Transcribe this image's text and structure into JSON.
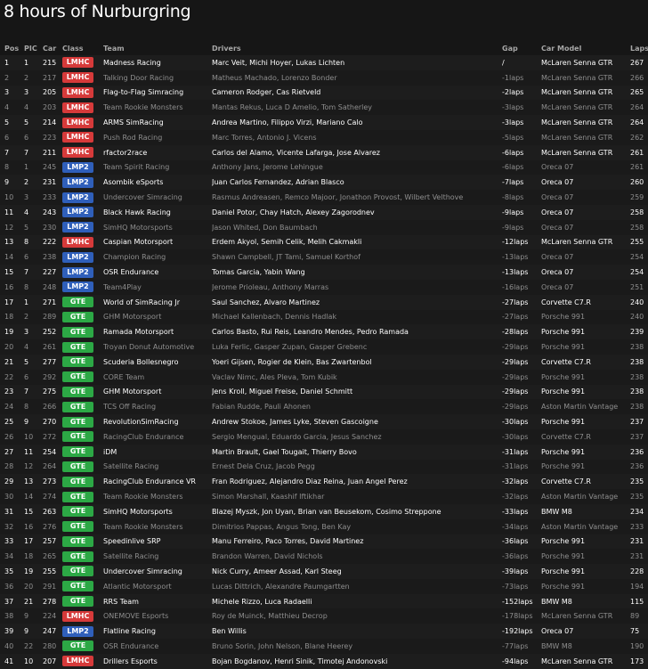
{
  "title": "8 hours of Nurburgring",
  "headers": {
    "pos": "Pos",
    "pic": "PIC",
    "car": "Car",
    "class": "Class",
    "team": "Team",
    "drivers": "Drivers",
    "gap": "Gap",
    "model": "Car Model",
    "laps": "Laps"
  },
  "class_colors": {
    "LMHC": "#d63a3a",
    "LMP2": "#2f5fba",
    "GTE": "#2ca845"
  },
  "rows": [
    {
      "pos": "1",
      "pic": "1",
      "car": "215",
      "class": "LMHC",
      "team": "Madness Racing",
      "drivers": "Marc Veit, Michi Hoyer, Lukas Lichten",
      "gap": "/",
      "model": "McLaren Senna GTR",
      "laps": "267",
      "dim": false
    },
    {
      "pos": "2",
      "pic": "2",
      "car": "217",
      "class": "LMHC",
      "team": "Talking Door Racing",
      "drivers": "Matheus Machado, Lorenzo Bonder",
      "gap": "-1laps",
      "model": "McLaren Senna GTR",
      "laps": "266",
      "dim": true
    },
    {
      "pos": "3",
      "pic": "3",
      "car": "205",
      "class": "LMHC",
      "team": "Flag-to-Flag Simracing",
      "drivers": "Cameron Rodger, Cas Rietveld",
      "gap": "-2laps",
      "model": "McLaren Senna GTR",
      "laps": "265",
      "dim": false
    },
    {
      "pos": "4",
      "pic": "4",
      "car": "203",
      "class": "LMHC",
      "team": "Team Rookie Monsters",
      "drivers": "Mantas Rekus, Luca D Amelio, Tom Satherley",
      "gap": "-3laps",
      "model": "McLaren Senna GTR",
      "laps": "264",
      "dim": true
    },
    {
      "pos": "5",
      "pic": "5",
      "car": "214",
      "class": "LMHC",
      "team": "ARMS SimRacing",
      "drivers": "Andrea Martino, Filippo Virzi, Mariano Calo",
      "gap": "-3laps",
      "model": "McLaren Senna GTR",
      "laps": "264",
      "dim": false
    },
    {
      "pos": "6",
      "pic": "6",
      "car": "223",
      "class": "LMHC",
      "team": "Push Rod Racing",
      "drivers": "Marc Torres, Antonio J. Vicens",
      "gap": "-5laps",
      "model": "McLaren Senna GTR",
      "laps": "262",
      "dim": true
    },
    {
      "pos": "7",
      "pic": "7",
      "car": "211",
      "class": "LMHC",
      "team": "rfactor2race",
      "drivers": "Carlos del Alamo, Vicente Lafarga, Jose Alvarez",
      "gap": "-6laps",
      "model": "McLaren Senna GTR",
      "laps": "261",
      "dim": false
    },
    {
      "pos": "8",
      "pic": "1",
      "car": "245",
      "class": "LMP2",
      "team": "Team Spirit Racing",
      "drivers": "Anthony Jans, Jerome Lehingue",
      "gap": "-6laps",
      "model": "Oreca 07",
      "laps": "261",
      "dim": true
    },
    {
      "pos": "9",
      "pic": "2",
      "car": "231",
      "class": "LMP2",
      "team": "Asombik eSports",
      "drivers": "Juan Carlos Fernandez, Adrian Blasco",
      "gap": "-7laps",
      "model": "Oreca 07",
      "laps": "260",
      "dim": false
    },
    {
      "pos": "10",
      "pic": "3",
      "car": "233",
      "class": "LMP2",
      "team": "Undercover Simracing",
      "drivers": "Rasmus Andreasen, Remco Majoor, Jonathon Provost, Wilbert Velthove",
      "gap": "-8laps",
      "model": "Oreca 07",
      "laps": "259",
      "dim": true
    },
    {
      "pos": "11",
      "pic": "4",
      "car": "243",
      "class": "LMP2",
      "team": "Black Hawk Racing",
      "drivers": "Daniel Potor, Chay Hatch, Alexey Zagorodnev",
      "gap": "-9laps",
      "model": "Oreca 07",
      "laps": "258",
      "dim": false
    },
    {
      "pos": "12",
      "pic": "5",
      "car": "230",
      "class": "LMP2",
      "team": "SimHQ Motorsports",
      "drivers": "Jason Whited, Don Baumbach",
      "gap": "-9laps",
      "model": "Oreca 07",
      "laps": "258",
      "dim": true
    },
    {
      "pos": "13",
      "pic": "8",
      "car": "222",
      "class": "LMHC",
      "team": "Caspian Motorsport",
      "drivers": "Erdem Akyol, Semih Celik, Melih Cakmakli",
      "gap": "-12laps",
      "model": "McLaren Senna GTR",
      "laps": "255",
      "dim": false
    },
    {
      "pos": "14",
      "pic": "6",
      "car": "238",
      "class": "LMP2",
      "team": "Champion Racing",
      "drivers": "Shawn Campbell, JT Tami, Samuel Korthof",
      "gap": "-13laps",
      "model": "Oreca 07",
      "laps": "254",
      "dim": true
    },
    {
      "pos": "15",
      "pic": "7",
      "car": "227",
      "class": "LMP2",
      "team": "OSR Endurance",
      "drivers": "Tomas Garcia, Yabin Wang",
      "gap": "-13laps",
      "model": "Oreca 07",
      "laps": "254",
      "dim": false
    },
    {
      "pos": "16",
      "pic": "8",
      "car": "248",
      "class": "LMP2",
      "team": "Team4Play",
      "drivers": "Jerome Prioleau, Anthony Marras",
      "gap": "-16laps",
      "model": "Oreca 07",
      "laps": "251",
      "dim": true
    },
    {
      "pos": "17",
      "pic": "1",
      "car": "271",
      "class": "GTE",
      "team": "World of SimRacing Jr",
      "drivers": "Saul Sanchez, Alvaro Martinez",
      "gap": "-27laps",
      "model": "Corvette C7.R",
      "laps": "240",
      "dim": false
    },
    {
      "pos": "18",
      "pic": "2",
      "car": "289",
      "class": "GTE",
      "team": "GHM Motorsport",
      "drivers": "Michael Kallenbach, Dennis Hadlak",
      "gap": "-27laps",
      "model": "Porsche 991",
      "laps": "240",
      "dim": true
    },
    {
      "pos": "19",
      "pic": "3",
      "car": "252",
      "class": "GTE",
      "team": "Ramada Motorsport",
      "drivers": "Carlos Basto, Rui Reis, Leandro Mendes, Pedro Ramada",
      "gap": "-28laps",
      "model": "Porsche 991",
      "laps": "239",
      "dim": false
    },
    {
      "pos": "20",
      "pic": "4",
      "car": "261",
      "class": "GTE",
      "team": "Troyan Donut Automotive",
      "drivers": "Luka Ferlic, Gasper Zupan, Gasper Grebenc",
      "gap": "-29laps",
      "model": "Porsche 991",
      "laps": "238",
      "dim": true
    },
    {
      "pos": "21",
      "pic": "5",
      "car": "277",
      "class": "GTE",
      "team": "Scuderia Bollesnegro",
      "drivers": "Yoeri Gijsen, Rogier de Klein, Bas Zwartenbol",
      "gap": "-29laps",
      "model": "Corvette C7.R",
      "laps": "238",
      "dim": false
    },
    {
      "pos": "22",
      "pic": "6",
      "car": "292",
      "class": "GTE",
      "team": "CORE Team",
      "drivers": "Vaclav Nimc, Ales Pleva, Tom Kubik",
      "gap": "-29laps",
      "model": "Porsche 991",
      "laps": "238",
      "dim": true
    },
    {
      "pos": "23",
      "pic": "7",
      "car": "275",
      "class": "GTE",
      "team": "GHM Motorsport",
      "drivers": "Jens Kroll, Miguel Freise, Daniel Schmitt",
      "gap": "-29laps",
      "model": "Porsche 991",
      "laps": "238",
      "dim": false
    },
    {
      "pos": "24",
      "pic": "8",
      "car": "266",
      "class": "GTE",
      "team": "TCS Off Racing",
      "drivers": "Fabian Rudde, Pauli Ahonen",
      "gap": "-29laps",
      "model": "Aston Martin Vantage",
      "laps": "238",
      "dim": true
    },
    {
      "pos": "25",
      "pic": "9",
      "car": "270",
      "class": "GTE",
      "team": "RevolutionSimRacing",
      "drivers": "Andrew Stokoe, James Lyke, Steven Gascoigne",
      "gap": "-30laps",
      "model": "Porsche 991",
      "laps": "237",
      "dim": false
    },
    {
      "pos": "26",
      "pic": "10",
      "car": "272",
      "class": "GTE",
      "team": "RacingClub Endurance",
      "drivers": "Sergio Mengual, Eduardo Garcia, Jesus Sanchez",
      "gap": "-30laps",
      "model": "Corvette C7.R",
      "laps": "237",
      "dim": true
    },
    {
      "pos": "27",
      "pic": "11",
      "car": "254",
      "class": "GTE",
      "team": "iDM",
      "drivers": "Martin Brault, Gael Tougait, Thierry Bovo",
      "gap": "-31laps",
      "model": "Porsche 991",
      "laps": "236",
      "dim": false
    },
    {
      "pos": "28",
      "pic": "12",
      "car": "264",
      "class": "GTE",
      "team": "Satellite Racing",
      "drivers": "Ernest Dela Cruz, Jacob Pegg",
      "gap": "-31laps",
      "model": "Porsche 991",
      "laps": "236",
      "dim": true
    },
    {
      "pos": "29",
      "pic": "13",
      "car": "273",
      "class": "GTE",
      "team": "RacingClub Endurance VR",
      "drivers": "Fran Rodriguez, Alejandro Diaz Reina, Juan Angel Perez",
      "gap": "-32laps",
      "model": "Corvette C7.R",
      "laps": "235",
      "dim": false
    },
    {
      "pos": "30",
      "pic": "14",
      "car": "274",
      "class": "GTE",
      "team": "Team Rookie Monsters",
      "drivers": "Simon Marshall, Kaashif Iftikhar",
      "gap": "-32laps",
      "model": "Aston Martin Vantage",
      "laps": "235",
      "dim": true
    },
    {
      "pos": "31",
      "pic": "15",
      "car": "263",
      "class": "GTE",
      "team": "SimHQ Motorsports",
      "drivers": "Blazej Myszk, Jon Uyan, Brian van Beusekom, Cosimo Streppone",
      "gap": "-33laps",
      "model": "BMW M8",
      "laps": "234",
      "dim": false
    },
    {
      "pos": "32",
      "pic": "16",
      "car": "276",
      "class": "GTE",
      "team": "Team Rookie Monsters",
      "drivers": "Dimitrios Pappas, Angus Tong, Ben Kay",
      "gap": "-34laps",
      "model": "Aston Martin Vantage",
      "laps": "233",
      "dim": true
    },
    {
      "pos": "33",
      "pic": "17",
      "car": "257",
      "class": "GTE",
      "team": "Speedinlive SRP",
      "drivers": "Manu Ferreiro, Paco Torres, David Martinez",
      "gap": "-36laps",
      "model": "Porsche 991",
      "laps": "231",
      "dim": false
    },
    {
      "pos": "34",
      "pic": "18",
      "car": "265",
      "class": "GTE",
      "team": "Satellite Racing",
      "drivers": "Brandon Warren, David Nichols",
      "gap": "-36laps",
      "model": "Porsche 991",
      "laps": "231",
      "dim": true
    },
    {
      "pos": "35",
      "pic": "19",
      "car": "255",
      "class": "GTE",
      "team": "Undercover Simracing",
      "drivers": "Nick Curry, Ameer Assad, Karl Steeg",
      "gap": "-39laps",
      "model": "Porsche 991",
      "laps": "228",
      "dim": false
    },
    {
      "pos": "36",
      "pic": "20",
      "car": "291",
      "class": "GTE",
      "team": "Atlantic Motorsport",
      "drivers": "Lucas Dittrich, Alexandre Paumgartten",
      "gap": "-73laps",
      "model": "Porsche 991",
      "laps": "194",
      "dim": true
    },
    {
      "pos": "37",
      "pic": "21",
      "car": "278",
      "class": "GTE",
      "team": "RRS Team",
      "drivers": "Michele Rizzo, Luca Radaelli",
      "gap": "-152laps",
      "model": "BMW M8",
      "laps": "115",
      "dim": false
    },
    {
      "pos": "38",
      "pic": "9",
      "car": "224",
      "class": "LMHC",
      "team": "ONEMOVE Esports",
      "drivers": "Roy de Muinck, Matthieu Decrop",
      "gap": "-178laps",
      "model": "McLaren Senna GTR",
      "laps": "89",
      "dim": true
    },
    {
      "pos": "39",
      "pic": "9",
      "car": "247",
      "class": "LMP2",
      "team": "Flatline Racing",
      "drivers": "Ben Willis",
      "gap": "-192laps",
      "model": "Oreca 07",
      "laps": "75",
      "dim": false
    },
    {
      "pos": "40",
      "pic": "22",
      "car": "280",
      "class": "GTE",
      "team": "OSR Endurance",
      "drivers": "Bruno Sorin, John Nelson, Blane Heerey",
      "gap": "-77laps",
      "model": "BMW M8",
      "laps": "190",
      "dim": true
    },
    {
      "pos": "41",
      "pic": "10",
      "car": "207",
      "class": "LMHC",
      "team": "Drillers Esports",
      "drivers": "Bojan Bogdanov, Henri Sinik, Timotej Andonovski",
      "gap": "-94laps",
      "model": "McLaren Senna GTR",
      "laps": "173",
      "dim": false
    }
  ]
}
